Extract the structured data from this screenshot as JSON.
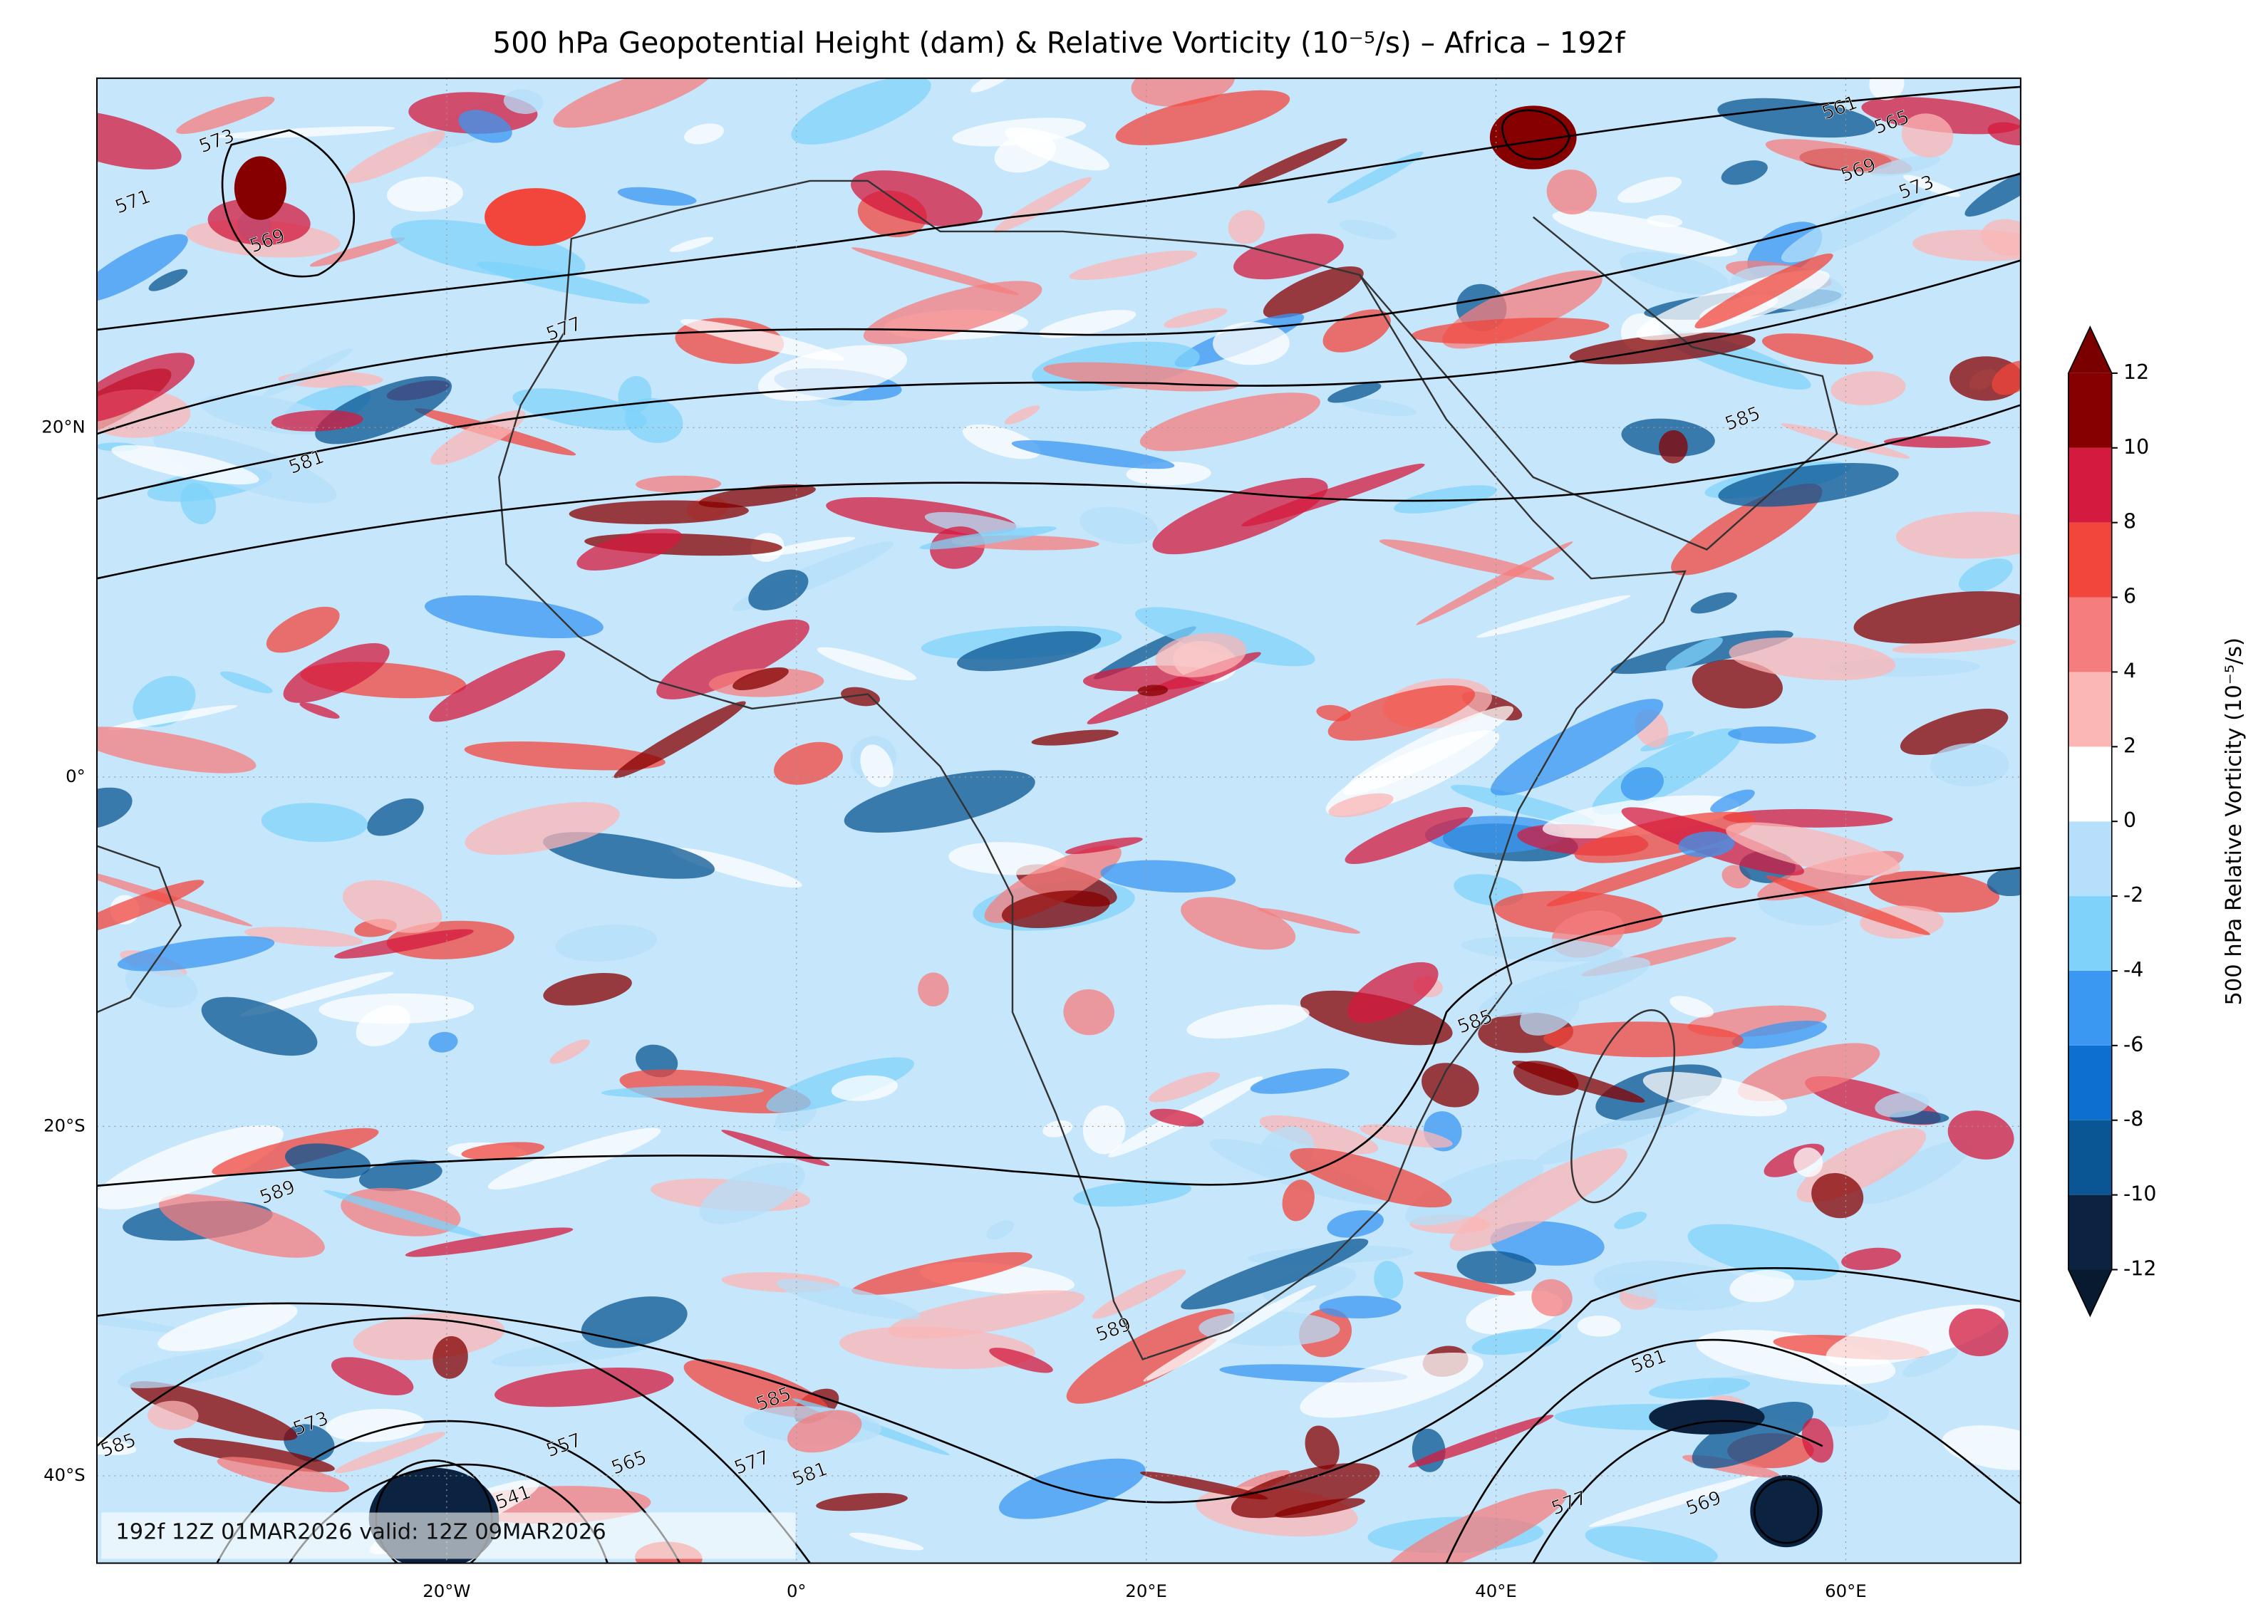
{
  "title": "500 hPa Geopotential Height (dam) & Relative Vorticity (10⁻⁵/s) – Africa – 192f",
  "map": {
    "xlim": [
      -40,
      70
    ],
    "ylim": [
      -45,
      40
    ],
    "grid": true,
    "xticks": [
      {
        "value": -20,
        "label": "20°W"
      },
      {
        "value": 0,
        "label": "0°"
      },
      {
        "value": 20,
        "label": "20°E"
      },
      {
        "value": 40,
        "label": "40°E"
      },
      {
        "value": 60,
        "label": "60°E"
      }
    ],
    "yticks": [
      {
        "value": 20,
        "label": "20°N"
      },
      {
        "value": 0,
        "label": "0°"
      },
      {
        "value": -20,
        "label": "20°S"
      },
      {
        "value": -40,
        "label": "40°S"
      }
    ],
    "contour_labels": [
      "573",
      "569",
      "571",
      "577",
      "581",
      "585",
      "561",
      "565",
      "569",
      "573",
      "589",
      "585",
      "589",
      "585",
      "573",
      "557",
      "565",
      "577",
      "581",
      "585",
      "577",
      "581",
      "569",
      "541"
    ],
    "footer": "192f 12Z 01MAR2026 valid: 12Z 09MAR2026"
  },
  "colorbar": {
    "label": "500 hPa Relative Vorticity (10⁻⁵/s)",
    "levels": [
      -12,
      -10,
      -8,
      -6,
      -4,
      -2,
      0,
      2,
      4,
      6,
      8,
      10,
      12
    ],
    "colors": [
      "#0b2340",
      "#0a5593",
      "#0d70d0",
      "#3a97f2",
      "#7fd3fb",
      "#b5dffa",
      "#ffffff",
      "#fbb6b6",
      "#f67d7d",
      "#f2463c",
      "#d41a3e",
      "#860000"
    ],
    "extend_colors": [
      "#071a30",
      "#7a0000"
    ]
  }
}
